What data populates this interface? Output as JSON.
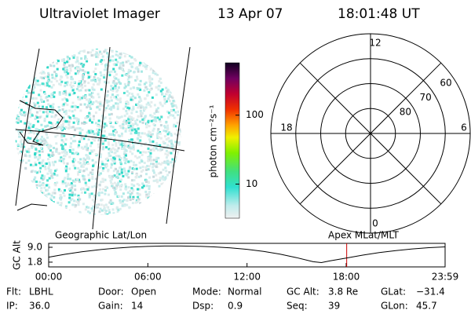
{
  "header": {
    "title": "Ultraviolet Imager",
    "date": "13 Apr 07",
    "time": "18:01:48 UT"
  },
  "colorbar": {
    "label": "photon cm⁻²s⁻¹",
    "log": true,
    "range": [
      3.2,
      575
    ],
    "ticks": [
      10,
      100
    ]
  },
  "polar": {
    "lat_range": [
      50,
      90
    ],
    "lat_ticks": [
      60,
      70,
      80
    ],
    "mlt_ticks": [
      0,
      6,
      12,
      18
    ]
  },
  "altitude": {
    "ylabel": "GC Alt",
    "left_label": "Geographic Lat/Lon",
    "right_label": "Apex MLat/MLT",
    "ylim": [
      -0.5,
      10.9
    ],
    "yticks": [
      1.8,
      {
        "value": 9,
        "label": "9.0"
      }
    ],
    "xlim": [
      0,
      23.983
    ],
    "xticks": [
      {
        "value": 0,
        "label": "00:00"
      },
      {
        "value": 6,
        "label": "06:00"
      },
      {
        "value": 12,
        "label": "12:00"
      },
      {
        "value": 18,
        "label": "18:00"
      },
      {
        "value": 23.983,
        "label": "23:59"
      }
    ],
    "x": [
      0,
      1,
      2,
      3,
      4,
      5,
      6,
      7,
      8,
      9,
      10,
      11,
      12,
      13,
      14,
      15,
      16,
      16.5,
      17,
      18,
      19,
      20,
      21,
      22,
      23,
      23.983
    ],
    "values": [
      4.2,
      5.6,
      6.8,
      7.8,
      8.5,
      9.1,
      9.4,
      9.6,
      9.6,
      9.5,
      9.2,
      8.7,
      8.0,
      7.0,
      5.7,
      4.0,
      2.0,
      1.6,
      2.4,
      3.8,
      5.2,
      6.4,
      7.4,
      8.2,
      8.8,
      9.2
    ],
    "line_color": "#000000",
    "marker_x": 18.03,
    "marker_color": "#cc0000"
  },
  "footer": [
    [
      {
        "label": "Flt:",
        "value": "LBHL"
      },
      {
        "label": "Door:",
        "value": "Open"
      },
      {
        "label": "Mode:",
        "value": "Normal"
      },
      {
        "label": "GC Alt:",
        "value": "3.8 Re"
      },
      {
        "label": "GLat:",
        "value": "−31.4"
      }
    ],
    [
      {
        "label": "IP:",
        "value": "36.0"
      },
      {
        "label": "Gain:",
        "value": "14"
      },
      {
        "label": "Dsp:",
        "value": "0.9"
      },
      {
        "label": "Seq:",
        "value": "39"
      },
      {
        "label": "GLon:",
        "value": "45.7"
      }
    ]
  ]
}
